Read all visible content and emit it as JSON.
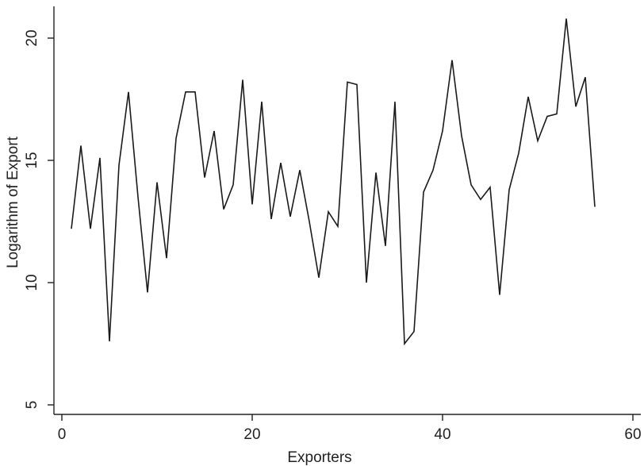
{
  "chart_data": {
    "type": "line",
    "xlabel": "Exporters",
    "ylabel": "Logarithm of Export",
    "xlim": [
      0,
      60
    ],
    "ylim": [
      5,
      20
    ],
    "xticks": [
      "0",
      "20",
      "40",
      "60"
    ],
    "yticks": [
      "5",
      "10",
      "15",
      "20"
    ],
    "grid": false,
    "series": [
      {
        "x": [
          1,
          2,
          3,
          4,
          5,
          6,
          7,
          8,
          9,
          10,
          11,
          12,
          13,
          14,
          15,
          16,
          17,
          18,
          19,
          20,
          21,
          22,
          23,
          24,
          25,
          26,
          27,
          28,
          29,
          30,
          31,
          32,
          33,
          34,
          35,
          36,
          37,
          38,
          39,
          40,
          41,
          42,
          43,
          44,
          45,
          46,
          47,
          48,
          49,
          50,
          51,
          52,
          53,
          54,
          55,
          56
        ],
        "y": [
          12.2,
          15.6,
          12.2,
          15.1,
          7.6,
          14.8,
          17.8,
          13.5,
          9.6,
          14.1,
          11.0,
          15.9,
          17.8,
          17.8,
          14.3,
          16.2,
          13.0,
          14.0,
          18.3,
          13.2,
          17.4,
          12.6,
          14.9,
          12.7,
          14.6,
          12.5,
          10.2,
          12.9,
          12.3,
          18.2,
          18.1,
          10.0,
          14.5,
          11.5,
          17.4,
          7.5,
          8.0,
          13.7,
          14.6,
          16.2,
          19.1,
          16.0,
          14.0,
          13.4,
          13.9,
          9.5,
          13.8,
          15.3,
          17.6,
          15.8,
          16.8,
          16.9,
          20.8,
          17.2,
          18.4,
          13.1
        ]
      }
    ]
  }
}
